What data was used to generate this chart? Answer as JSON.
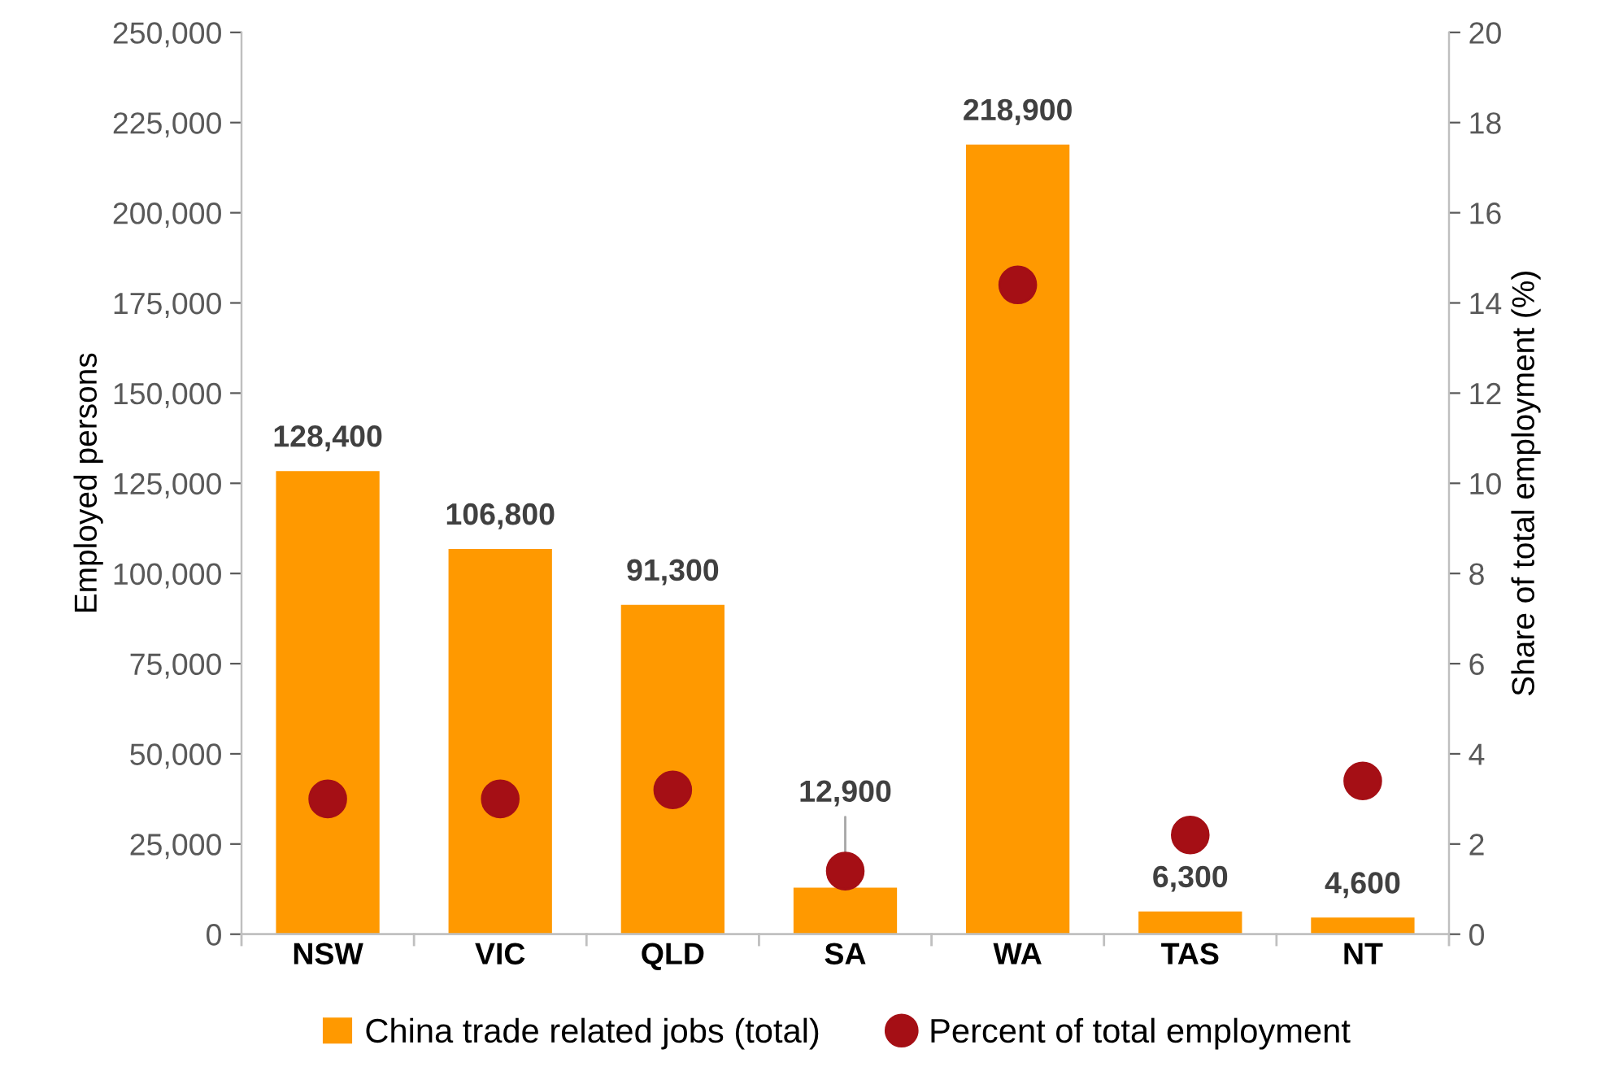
{
  "chart_data": {
    "type": "bar",
    "categories": [
      "NSW",
      "VIC",
      "QLD",
      "SA",
      "WA",
      "TAS",
      "NT"
    ],
    "ylabel": "Employed persons",
    "y2label": "Share of total employment (%)",
    "ylim": [
      0,
      250000
    ],
    "yticks": [
      {
        "value": 0,
        "label": "0"
      },
      {
        "value": 25000,
        "label": "25,000"
      },
      {
        "value": 50000,
        "label": "50,000"
      },
      {
        "value": 75000,
        "label": "75,000"
      },
      {
        "value": 100000,
        "label": "100,000"
      },
      {
        "value": 125000,
        "label": "125,000"
      },
      {
        "value": 150000,
        "label": "150,000"
      },
      {
        "value": 175000,
        "label": "175,000"
      },
      {
        "value": 200000,
        "label": "200,000"
      },
      {
        "value": 225000,
        "label": "225,000"
      },
      {
        "value": 250000,
        "label": "250,000"
      }
    ],
    "y2lim": [
      0,
      20
    ],
    "y2ticks": [
      0,
      2,
      4,
      6,
      8,
      10,
      12,
      14,
      16,
      18,
      20
    ],
    "series": [
      {
        "name": "China trade related jobs (total)",
        "color": "#ff9900",
        "values": [
          128400,
          106800,
          91300,
          12900,
          218900,
          6300,
          4600
        ],
        "value_labels": [
          "128,400",
          "106,800",
          "91,300",
          "12,900",
          "218,900",
          "6,300",
          "4,600"
        ]
      },
      {
        "name": "Percent of total employment",
        "type": "scatter",
        "axis": "y2",
        "color": "#a50f15",
        "marker": "circle",
        "values": [
          3.0,
          3.0,
          3.2,
          1.4,
          14.4,
          2.2,
          3.4
        ]
      }
    ],
    "grid": false,
    "legend": "bottom"
  }
}
